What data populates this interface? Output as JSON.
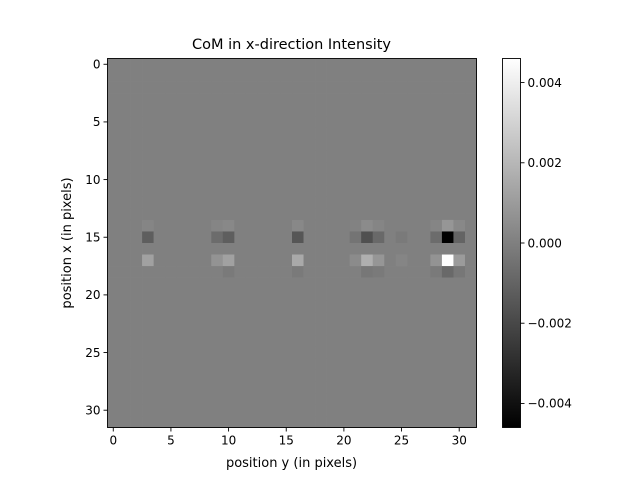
{
  "chart_data": {
    "type": "heatmap",
    "title": "CoM in x-direction Intensity",
    "xlabel": "position y (in pixels)",
    "ylabel": "position x (in pixels)",
    "grid_size": [
      32,
      32
    ],
    "xticks": [
      0,
      5,
      10,
      15,
      20,
      25,
      30
    ],
    "yticks": [
      0,
      5,
      10,
      15,
      20,
      25,
      30
    ],
    "xtick_labels": [
      "0",
      "5",
      "10",
      "15",
      "20",
      "25",
      "30"
    ],
    "ytick_labels": [
      "0",
      "5",
      "10",
      "15",
      "20",
      "25",
      "30"
    ],
    "colormap": "gray",
    "vmin": -0.0046,
    "vmax": 0.0046,
    "background_value": 0.0,
    "colorbar": {
      "ticks": [
        0.004,
        0.002,
        0.0,
        -0.002,
        -0.004
      ],
      "tick_labels": [
        "0.004",
        "0.002",
        "0.000",
        "−0.002",
        "−0.004"
      ]
    },
    "nonzero_cells": [
      {
        "row": 14,
        "col": 3,
        "value": 0.0002
      },
      {
        "row": 15,
        "col": 3,
        "value": -0.0012
      },
      {
        "row": 17,
        "col": 3,
        "value": 0.0012
      },
      {
        "row": 14,
        "col": 9,
        "value": 0.0002
      },
      {
        "row": 15,
        "col": 9,
        "value": -0.0007
      },
      {
        "row": 17,
        "col": 9,
        "value": 0.0007
      },
      {
        "row": 14,
        "col": 10,
        "value": 0.0003
      },
      {
        "row": 15,
        "col": 10,
        "value": -0.0012
      },
      {
        "row": 17,
        "col": 10,
        "value": 0.0012
      },
      {
        "row": 18,
        "col": 10,
        "value": -0.0002
      },
      {
        "row": 14,
        "col": 16,
        "value": 0.0003
      },
      {
        "row": 15,
        "col": 16,
        "value": -0.0015
      },
      {
        "row": 17,
        "col": 16,
        "value": 0.0015
      },
      {
        "row": 18,
        "col": 16,
        "value": -0.0002
      },
      {
        "row": 14,
        "col": 21,
        "value": 0.0001
      },
      {
        "row": 15,
        "col": 21,
        "value": -0.0004
      },
      {
        "row": 17,
        "col": 21,
        "value": 0.0004
      },
      {
        "row": 14,
        "col": 22,
        "value": 0.0004
      },
      {
        "row": 15,
        "col": 22,
        "value": -0.0017
      },
      {
        "row": 17,
        "col": 22,
        "value": 0.0017
      },
      {
        "row": 18,
        "col": 22,
        "value": -0.0003
      },
      {
        "row": 14,
        "col": 23,
        "value": 0.0002
      },
      {
        "row": 15,
        "col": 23,
        "value": -0.0008
      },
      {
        "row": 17,
        "col": 23,
        "value": 0.0008
      },
      {
        "row": 18,
        "col": 23,
        "value": -0.0002
      },
      {
        "row": 15,
        "col": 25,
        "value": -0.0002
      },
      {
        "row": 17,
        "col": 25,
        "value": 0.0002
      },
      {
        "row": 14,
        "col": 28,
        "value": 0.0002
      },
      {
        "row": 15,
        "col": 28,
        "value": -0.0007
      },
      {
        "row": 17,
        "col": 28,
        "value": 0.0007
      },
      {
        "row": 18,
        "col": 28,
        "value": -0.0002
      },
      {
        "row": 14,
        "col": 29,
        "value": 0.0008
      },
      {
        "row": 15,
        "col": 29,
        "value": -0.0046
      },
      {
        "row": 17,
        "col": 29,
        "value": 0.0046
      },
      {
        "row": 18,
        "col": 29,
        "value": -0.0008
      },
      {
        "row": 14,
        "col": 30,
        "value": 0.0003
      },
      {
        "row": 15,
        "col": 30,
        "value": -0.001
      },
      {
        "row": 17,
        "col": 30,
        "value": 0.001
      },
      {
        "row": 18,
        "col": 30,
        "value": -0.0003
      }
    ]
  }
}
